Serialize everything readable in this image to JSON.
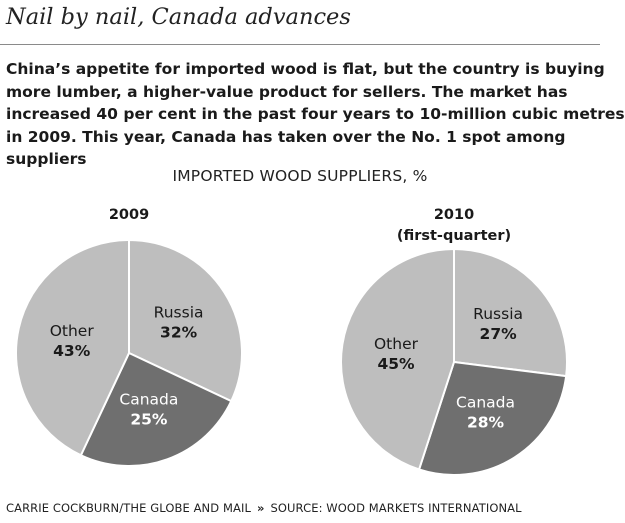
{
  "header": {
    "title": "Nail by nail, Canada advances",
    "description_lines": [
      "China’s appetite for imported wood is flat, but the country is buying",
      "more lumber, a higher-value product for sellers. The market has",
      "increased 40 per cent in the past four years to 10-million cubic metres",
      "in 2009. This year, Canada has taken over the No. 1 spot among",
      "suppliers"
    ],
    "subtitle": "IMPORTED WOOD SUPPLIERS, %"
  },
  "chart_data": [
    {
      "type": "pie",
      "title_lines": [
        "2009"
      ],
      "slices": [
        {
          "label": "Russia",
          "value": 32,
          "display": "32%",
          "color": "#bebebe"
        },
        {
          "label": "Canada",
          "value": 25,
          "display": "25%",
          "color": "#6f6f6f"
        },
        {
          "label": "Other",
          "value": 43,
          "display": "43%",
          "color": "#bebebe"
        }
      ]
    },
    {
      "type": "pie",
      "title_lines": [
        "2010",
        "(first-quarter)"
      ],
      "slices": [
        {
          "label": "Russia",
          "value": 27,
          "display": "27%",
          "color": "#bebebe"
        },
        {
          "label": "Canada",
          "value": 28,
          "display": "28%",
          "color": "#6f6f6f"
        },
        {
          "label": "Other",
          "value": 45,
          "display": "45%",
          "color": "#bebebe"
        }
      ]
    }
  ],
  "footer": {
    "credit": "CARRIE COCKBURN/THE GLOBE AND MAIL",
    "separator": "»",
    "source": "SOURCE: WOOD MARKETS INTERNATIONAL"
  }
}
